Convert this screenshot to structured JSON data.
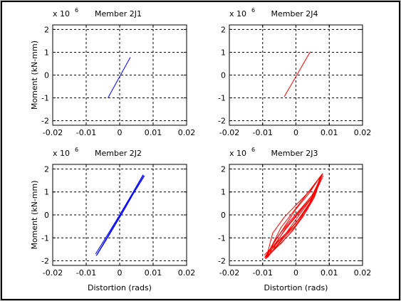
{
  "window": {
    "background": "#c0c0c0",
    "frame": "#ffffff"
  },
  "axes_common": {
    "x_ticks": [
      "-0.02",
      "-0.01",
      "0",
      "0.01",
      "0.02"
    ],
    "y_ticks": [
      "2",
      "1",
      "0",
      "-1",
      "-2"
    ],
    "exponent_prefix": "x 10",
    "exponent_power": "6",
    "xlabel": "Distortion (rads)",
    "ylabel": "Moment (kN-mm)"
  },
  "chart_data": [
    {
      "type": "line",
      "title": "Member 2J1",
      "xlim": [
        -0.02,
        0.02
      ],
      "ylim": [
        -2.2,
        2.2
      ],
      "y_scale_note": "x 10^6",
      "grid": true,
      "series": [
        {
          "color": "#0000ff",
          "loop": false,
          "x": [
            -0.0035,
            0.0032
          ],
          "y": [
            -1.0,
            0.78
          ]
        }
      ]
    },
    {
      "type": "line",
      "title": "Member 2J4",
      "xlim": [
        -0.02,
        0.02
      ],
      "ylim": [
        -2.2,
        2.2
      ],
      "y_scale_note": "x 10^6",
      "grid": true,
      "series": [
        {
          "color": "#ff0000",
          "loop": false,
          "x": [
            -0.0035,
            0.0043
          ],
          "y": [
            -0.95,
            1.02
          ]
        }
      ]
    },
    {
      "type": "line",
      "title": "Member 2J2",
      "xlim": [
        -0.02,
        0.02
      ],
      "ylim": [
        -2.2,
        2.2
      ],
      "y_scale_note": "x 10^6",
      "grid": true,
      "series": [
        {
          "color": "#0000ff",
          "loop": false,
          "x": [
            -0.007,
            0.0072
          ],
          "y": [
            -1.78,
            1.72
          ]
        },
        {
          "color": "#0000ff",
          "loop": false,
          "x": [
            -0.0072,
            -0.003,
            0.0,
            0.0035,
            0.007
          ],
          "y": [
            -1.7,
            -0.72,
            0.0,
            0.86,
            1.75
          ]
        },
        {
          "color": "#0000ff",
          "loop": false,
          "x": [
            -0.0068,
            -0.0028,
            0.0008,
            0.004,
            0.0074
          ],
          "y": [
            -1.75,
            -0.8,
            0.08,
            0.9,
            1.7
          ]
        }
      ]
    },
    {
      "type": "line",
      "title": "Member 2J3",
      "xlim": [
        -0.02,
        0.02
      ],
      "ylim": [
        -2.2,
        2.2
      ],
      "y_scale_note": "x 10^6",
      "grid": true,
      "series": [
        {
          "color": "#ff0000",
          "loop": true,
          "x": [
            -0.009,
            -0.005,
            0.0,
            0.004,
            0.008,
            0.006,
            0.0025,
            -0.002,
            -0.006
          ],
          "y": [
            -1.9,
            -1.2,
            -0.45,
            0.45,
            1.78,
            1.05,
            0.45,
            -0.3,
            -1.05
          ]
        },
        {
          "color": "#ff0000",
          "loop": true,
          "x": [
            -0.0085,
            -0.004,
            0.0,
            0.0045,
            0.0078,
            0.0055,
            0.001,
            -0.003,
            -0.0065
          ],
          "y": [
            -1.85,
            -1.0,
            -0.2,
            0.7,
            1.75,
            0.9,
            0.1,
            -0.6,
            -1.3
          ]
        },
        {
          "color": "#ff0000",
          "loop": true,
          "x": [
            -0.0088,
            -0.0045,
            -0.0005,
            0.0035,
            0.0075,
            0.0045,
            0.0005,
            -0.0035,
            -0.007
          ],
          "y": [
            -1.8,
            -1.25,
            -0.6,
            0.25,
            1.7,
            1.1,
            0.5,
            -0.1,
            -0.8
          ]
        },
        {
          "color": "#ff0000",
          "loop": true,
          "x": [
            -0.0092,
            -0.006,
            -0.002,
            0.002,
            0.0055,
            0.008,
            0.0035,
            -0.0005,
            -0.0045
          ],
          "y": [
            -1.9,
            -1.45,
            -0.85,
            -0.1,
            0.75,
            1.8,
            0.95,
            0.2,
            -0.55
          ]
        },
        {
          "color": "#ff0000",
          "loop": true,
          "x": [
            -0.007,
            -0.004,
            0.0,
            0.004,
            0.007,
            0.0048,
            0.001,
            -0.003,
            -0.006
          ],
          "y": [
            -1.6,
            -1.05,
            -0.35,
            0.5,
            1.45,
            0.85,
            0.15,
            -0.55,
            -1.25
          ]
        },
        {
          "color": "#ff0000",
          "loop": true,
          "x": [
            -0.0094,
            -0.0055,
            -0.001,
            0.003,
            0.006,
            0.0072,
            0.004,
            0.0,
            -0.0045
          ],
          "y": [
            -1.85,
            -1.2,
            -0.5,
            0.2,
            0.95,
            1.65,
            0.95,
            0.25,
            -0.75
          ]
        },
        {
          "color": "#ff0000",
          "loop": false,
          "x": [
            -0.0095,
            -0.005,
            0.0,
            0.0045,
            0.0082
          ],
          "y": [
            -1.75,
            -1.1,
            -0.35,
            0.55,
            1.7
          ]
        }
      ]
    }
  ]
}
